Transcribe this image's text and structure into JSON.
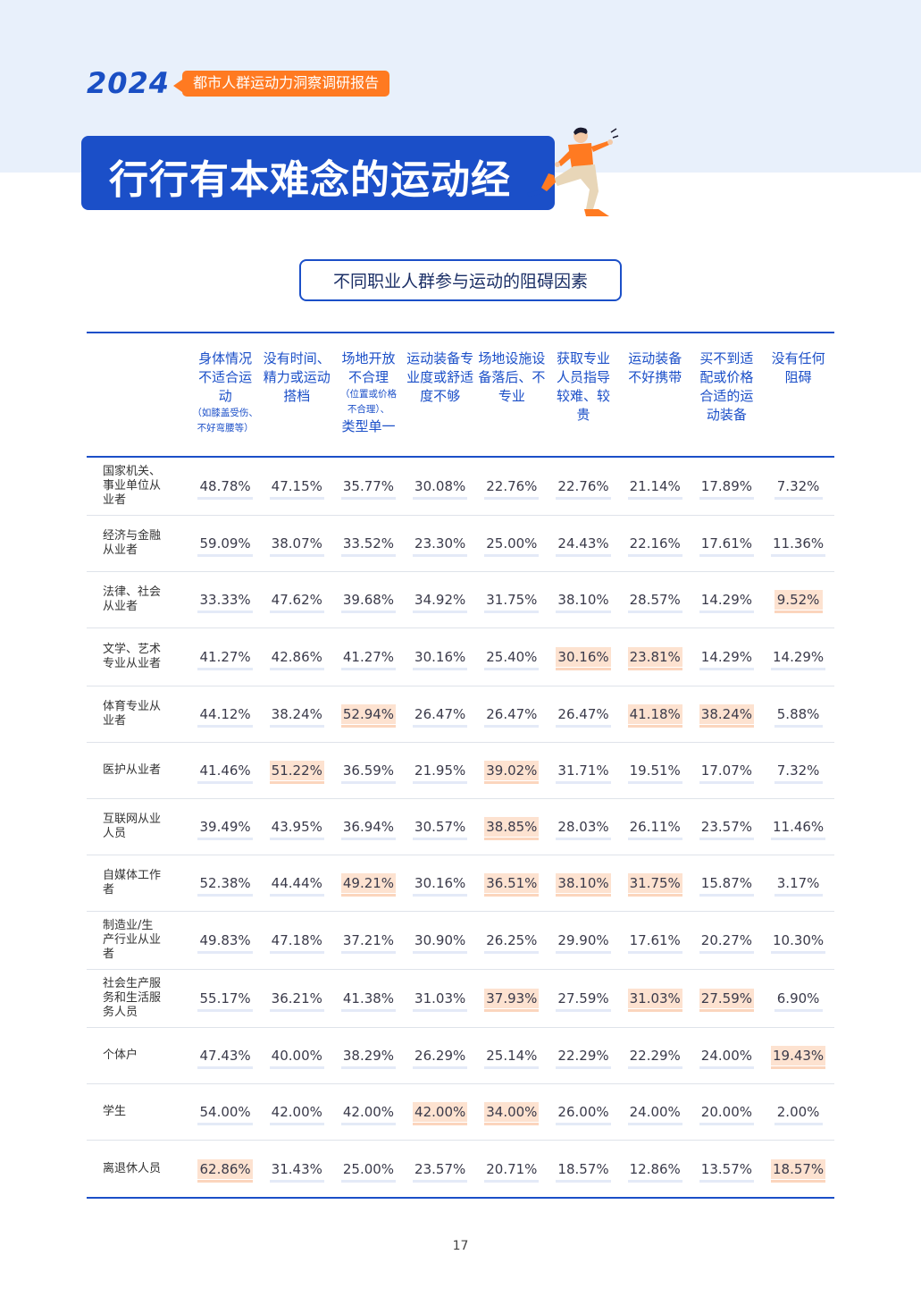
{
  "brand": {
    "year": "2024",
    "tag": "都市人群运动力洞察调研报告"
  },
  "hero": {
    "title": "行行有本难念的运动经"
  },
  "subtitle": "不同职业人群参与运动的阻碍因素",
  "table": {
    "headers": [
      {
        "label": "身体情况不适合运动",
        "note": "（如膝盖受伤、不好弯腰等）"
      },
      {
        "label": "没有时间、精力或运动搭档",
        "note": ""
      },
      {
        "label": "场地开放不合理",
        "note": "（位置或价格不合理）、",
        "label2": "类型单一"
      },
      {
        "label": "运动装备专业度或舒适度不够",
        "note": ""
      },
      {
        "label": "场地设施设备落后、不专业",
        "note": ""
      },
      {
        "label": "获取专业人员指导较难、较贵",
        "note": ""
      },
      {
        "label": "运动装备不好携带",
        "note": ""
      },
      {
        "label": "买不到适配或价格合适的运动装备",
        "note": ""
      },
      {
        "label": "没有任何阻碍",
        "note": ""
      }
    ],
    "rows": [
      {
        "label": "国家机关、事业单位从业者",
        "values": [
          "48.78%",
          "47.15%",
          "35.77%",
          "30.08%",
          "22.76%",
          "22.76%",
          "21.14%",
          "17.89%",
          "7.32%"
        ],
        "highlight": []
      },
      {
        "label": "经济与金融从业者",
        "values": [
          "59.09%",
          "38.07%",
          "33.52%",
          "23.30%",
          "25.00%",
          "24.43%",
          "22.16%",
          "17.61%",
          "11.36%"
        ],
        "highlight": []
      },
      {
        "label": "法律、社会从业者",
        "values": [
          "33.33%",
          "47.62%",
          "39.68%",
          "34.92%",
          "31.75%",
          "38.10%",
          "28.57%",
          "14.29%",
          "9.52%"
        ],
        "highlight": [
          8
        ]
      },
      {
        "label": "文学、艺术专业从业者",
        "values": [
          "41.27%",
          "42.86%",
          "41.27%",
          "30.16%",
          "25.40%",
          "30.16%",
          "23.81%",
          "14.29%",
          "14.29%"
        ],
        "highlight": [
          5,
          6
        ]
      },
      {
        "label": "体育专业从业者",
        "values": [
          "44.12%",
          "38.24%",
          "52.94%",
          "26.47%",
          "26.47%",
          "26.47%",
          "41.18%",
          "38.24%",
          "5.88%"
        ],
        "highlight": [
          2,
          6,
          7
        ]
      },
      {
        "label": "医护从业者",
        "values": [
          "41.46%",
          "51.22%",
          "36.59%",
          "21.95%",
          "39.02%",
          "31.71%",
          "19.51%",
          "17.07%",
          "7.32%"
        ],
        "highlight": [
          1,
          4
        ]
      },
      {
        "label": "互联网从业人员",
        "values": [
          "39.49%",
          "43.95%",
          "36.94%",
          "30.57%",
          "38.85%",
          "28.03%",
          "26.11%",
          "23.57%",
          "11.46%"
        ],
        "highlight": [
          4
        ]
      },
      {
        "label": "自媒体工作者",
        "values": [
          "52.38%",
          "44.44%",
          "49.21%",
          "30.16%",
          "36.51%",
          "38.10%",
          "31.75%",
          "15.87%",
          "3.17%"
        ],
        "highlight": [
          2,
          4,
          5,
          6
        ]
      },
      {
        "label": "制造业/生产行业从业者",
        "values": [
          "49.83%",
          "47.18%",
          "37.21%",
          "30.90%",
          "26.25%",
          "29.90%",
          "17.61%",
          "20.27%",
          "10.30%"
        ],
        "highlight": []
      },
      {
        "label": "社会生产服务和生活服务人员",
        "values": [
          "55.17%",
          "36.21%",
          "41.38%",
          "31.03%",
          "37.93%",
          "27.59%",
          "31.03%",
          "27.59%",
          "6.90%"
        ],
        "highlight": [
          4,
          6,
          7
        ]
      },
      {
        "label": "个体户",
        "values": [
          "47.43%",
          "40.00%",
          "38.29%",
          "26.29%",
          "25.14%",
          "22.29%",
          "22.29%",
          "24.00%",
          "19.43%"
        ],
        "highlight": [
          8
        ]
      },
      {
        "label": "学生",
        "values": [
          "54.00%",
          "42.00%",
          "42.00%",
          "42.00%",
          "34.00%",
          "26.00%",
          "24.00%",
          "20.00%",
          "2.00%"
        ],
        "highlight": [
          3,
          4
        ]
      },
      {
        "label": "离退休人员",
        "values": [
          "62.86%",
          "31.43%",
          "25.00%",
          "23.57%",
          "20.71%",
          "18.57%",
          "12.86%",
          "13.57%",
          "18.57%"
        ],
        "highlight": [
          0,
          8
        ]
      }
    ]
  },
  "page_number": "17",
  "colors": {
    "brand_blue": "#1b4fc8",
    "accent_orange": "#ff7a21",
    "highlight": "#fde2d0",
    "band": "#e8f0fb"
  }
}
